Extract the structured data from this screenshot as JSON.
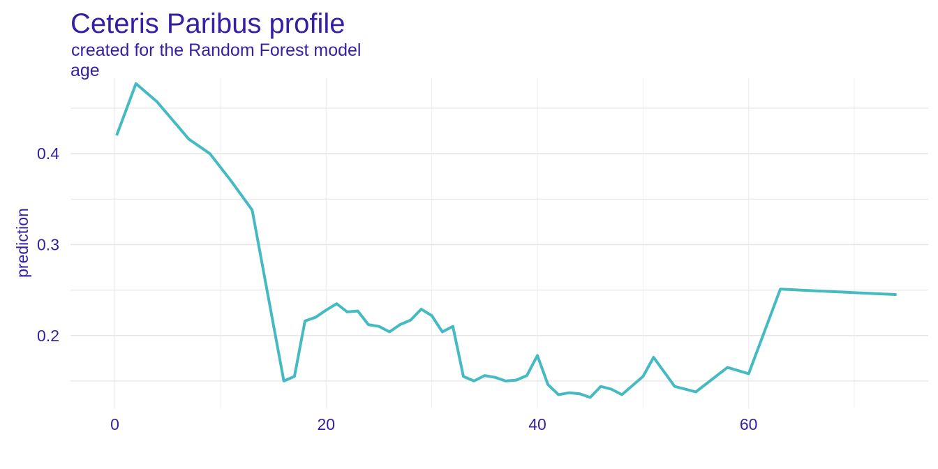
{
  "colors": {
    "text": "#371ea3",
    "line": "#46bac2",
    "grid": "#e6e6e6",
    "minor_grid": "#efefef"
  },
  "chart_data": {
    "type": "line",
    "title": "Ceteris Paribus profile",
    "subtitle": "created for the Random Forest model",
    "facet_label": "age",
    "xlabel": "",
    "ylabel": "prediction",
    "xlim": [
      -4.2,
      77
    ],
    "ylim": [
      0.12,
      0.483
    ],
    "xticks": [
      0,
      20,
      40,
      60
    ],
    "yticks": [
      0.2,
      0.3,
      0.4
    ],
    "grid": true,
    "series": [
      {
        "x": [
          0.17,
          2,
          4,
          7,
          9,
          11,
          13,
          16,
          17,
          18,
          19,
          20,
          21,
          22,
          23,
          24,
          25,
          26,
          27,
          28,
          29,
          30,
          31,
          32,
          33,
          34,
          35,
          36,
          37,
          38,
          39,
          40,
          41,
          42,
          43,
          44,
          45,
          46,
          47,
          48,
          50,
          51,
          53,
          55,
          58,
          60,
          63,
          74
        ],
        "y": [
          0.42,
          0.477,
          0.457,
          0.416,
          0.4,
          0.37,
          0.338,
          0.15,
          0.155,
          0.216,
          0.22,
          0.228,
          0.235,
          0.226,
          0.227,
          0.212,
          0.21,
          0.204,
          0.212,
          0.217,
          0.229,
          0.222,
          0.204,
          0.21,
          0.155,
          0.15,
          0.156,
          0.154,
          0.15,
          0.151,
          0.156,
          0.178,
          0.146,
          0.135,
          0.137,
          0.136,
          0.132,
          0.144,
          0.141,
          0.135,
          0.155,
          0.176,
          0.144,
          0.138,
          0.165,
          0.158,
          0.251,
          0.245
        ]
      }
    ]
  }
}
